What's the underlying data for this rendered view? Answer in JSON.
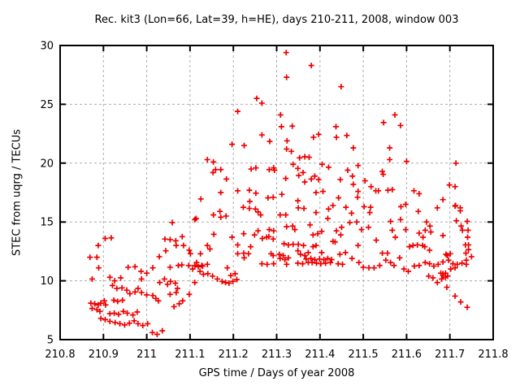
{
  "chart_data": {
    "type": "scatter",
    "title": "Rec. kit3 (Lon=66, Lat=39, h=HE), days 210-211, 2008, window 003",
    "xlabel": "GPS time / Days of year 2008",
    "ylabel": "STEC from uqrg / TECUs",
    "xlim": [
      210.8,
      211.8
    ],
    "ylim": [
      5,
      30
    ],
    "xticks": {
      "values": [
        210.8,
        210.9,
        211.0,
        211.1,
        211.2,
        211.3,
        211.4,
        211.5,
        211.6,
        211.7,
        211.8
      ],
      "labels": [
        "210.8",
        "210.9",
        "211",
        "211.1",
        "211.2",
        "211.3",
        "211.4",
        "211.5",
        "211.6",
        "211.7",
        "211.8"
      ]
    },
    "yticks": {
      "values": [
        5,
        10,
        15,
        20,
        25,
        30
      ],
      "labels": [
        "5",
        "10",
        "15",
        "20",
        "25",
        "30"
      ]
    },
    "grid": true,
    "legend": false,
    "marker": "plus",
    "marker_color": "#f00000",
    "grid_color": "#ababab",
    "axis_color": "#000000",
    "background": "#ffffff",
    "points": [
      [
        210.869,
        12.0
      ],
      [
        210.885,
        12.0
      ],
      [
        210.888,
        13.0
      ],
      [
        210.904,
        13.6
      ],
      [
        210.918,
        13.65
      ],
      [
        210.889,
        11.1
      ],
      [
        210.957,
        11.15
      ],
      [
        210.973,
        11.2
      ],
      [
        210.874,
        10.15
      ],
      [
        210.915,
        10.3
      ],
      [
        210.926,
        10.0
      ],
      [
        210.94,
        10.25
      ],
      [
        210.987,
        10.8
      ],
      [
        211.0,
        10.65
      ],
      [
        210.988,
        10.15
      ],
      [
        210.921,
        9.6
      ],
      [
        210.931,
        9.35
      ],
      [
        210.943,
        9.4
      ],
      [
        210.954,
        9.2
      ],
      [
        210.961,
        8.9
      ],
      [
        210.973,
        9.05
      ],
      [
        210.98,
        9.35
      ],
      [
        210.988,
        9.0
      ],
      [
        211.0,
        8.8
      ],
      [
        210.871,
        8.1
      ],
      [
        210.88,
        8.05
      ],
      [
        210.888,
        7.95
      ],
      [
        210.894,
        8.1
      ],
      [
        210.874,
        7.65
      ],
      [
        210.885,
        7.55
      ],
      [
        210.892,
        7.4
      ],
      [
        210.902,
        8.3
      ],
      [
        210.905,
        7.95
      ],
      [
        210.924,
        8.35
      ],
      [
        210.933,
        8.25
      ],
      [
        210.944,
        8.35
      ],
      [
        210.915,
        7.2
      ],
      [
        210.925,
        7.25
      ],
      [
        210.935,
        7.15
      ],
      [
        210.946,
        7.4
      ],
      [
        210.955,
        7.25
      ],
      [
        210.968,
        7.1
      ],
      [
        210.978,
        7.35
      ],
      [
        210.894,
        6.8
      ],
      [
        210.904,
        6.7
      ],
      [
        210.915,
        6.55
      ],
      [
        210.927,
        6.45
      ],
      [
        210.938,
        6.35
      ],
      [
        210.949,
        6.25
      ],
      [
        210.96,
        6.4
      ],
      [
        210.971,
        6.6
      ],
      [
        210.98,
        6.35
      ],
      [
        210.991,
        6.2
      ],
      [
        211.002,
        6.35
      ],
      [
        211.013,
        5.6
      ],
      [
        211.024,
        5.45
      ],
      [
        211.036,
        5.75
      ],
      [
        211.014,
        8.75
      ],
      [
        211.021,
        8.5
      ],
      [
        211.027,
        8.3
      ],
      [
        211.03,
        9.85
      ],
      [
        211.041,
        10.15
      ],
      [
        211.048,
        9.7
      ],
      [
        211.055,
        9.95
      ],
      [
        211.066,
        9.8
      ],
      [
        211.071,
        9.35
      ],
      [
        211.054,
        8.85
      ],
      [
        211.068,
        9.0
      ],
      [
        211.063,
        7.8
      ],
      [
        211.075,
        8.05
      ],
      [
        211.083,
        8.3
      ],
      [
        211.014,
        11.1
      ],
      [
        211.029,
        12.05
      ],
      [
        211.042,
        13.55
      ],
      [
        211.054,
        13.5
      ],
      [
        211.067,
        13.4
      ],
      [
        211.082,
        13.75
      ],
      [
        211.068,
        13.0
      ],
      [
        211.085,
        13.0
      ],
      [
        211.044,
        12.55
      ],
      [
        211.054,
        11.15
      ],
      [
        211.059,
        14.95
      ],
      [
        211.073,
        11.3
      ],
      [
        211.081,
        11.35
      ],
      [
        211.097,
        11.3
      ],
      [
        211.098,
        12.6
      ],
      [
        211.101,
        12.3
      ],
      [
        211.111,
        11.3
      ],
      [
        211.114,
        15.3
      ],
      [
        211.119,
        11.2
      ],
      [
        211.125,
        16.95
      ],
      [
        211.127,
        11.3
      ],
      [
        211.098,
        8.85
      ],
      [
        211.106,
        11.0
      ],
      [
        211.111,
        9.85
      ],
      [
        211.123,
        10.8
      ],
      [
        211.131,
        10.55
      ],
      [
        211.141,
        10.6
      ],
      [
        211.152,
        10.4
      ],
      [
        211.163,
        10.15
      ],
      [
        211.174,
        9.95
      ],
      [
        211.182,
        9.85
      ],
      [
        211.19,
        9.8
      ],
      [
        211.199,
        9.95
      ],
      [
        211.208,
        10.1
      ],
      [
        211.194,
        10.45
      ],
      [
        211.204,
        10.6
      ],
      [
        211.115,
        11.55
      ],
      [
        211.129,
        11.25
      ],
      [
        211.14,
        11.4
      ],
      [
        211.186,
        11.1
      ],
      [
        211.124,
        12.3
      ],
      [
        211.14,
        13.0
      ],
      [
        211.146,
        12.7
      ],
      [
        211.155,
        13.95
      ],
      [
        211.111,
        15.2
      ],
      [
        211.154,
        15.6
      ],
      [
        211.169,
        15.9
      ],
      [
        211.171,
        15.4
      ],
      [
        211.183,
        15.5
      ],
      [
        211.14,
        20.3
      ],
      [
        211.154,
        20.1
      ],
      [
        211.159,
        19.45
      ],
      [
        211.171,
        19.45
      ],
      [
        211.153,
        19.2
      ],
      [
        211.171,
        17.5
      ],
      [
        211.184,
        18.65
      ],
      [
        211.197,
        21.6
      ],
      [
        211.225,
        21.5
      ],
      [
        211.21,
        24.4
      ],
      [
        211.197,
        13.7
      ],
      [
        211.21,
        13.05
      ],
      [
        211.21,
        12.3
      ],
      [
        211.224,
        12.35
      ],
      [
        211.235,
        12.3
      ],
      [
        211.225,
        11.95
      ],
      [
        211.224,
        14.0
      ],
      [
        211.21,
        17.65
      ],
      [
        211.237,
        17.7
      ],
      [
        211.252,
        17.45
      ],
      [
        211.238,
        16.75
      ],
      [
        211.223,
        16.25
      ],
      [
        211.237,
        16.15
      ],
      [
        211.251,
        16.1
      ],
      [
        211.241,
        19.5
      ],
      [
        211.252,
        19.6
      ],
      [
        211.254,
        25.5
      ],
      [
        211.266,
        25.1
      ],
      [
        211.266,
        22.4
      ],
      [
        211.284,
        21.85
      ],
      [
        211.283,
        19.45
      ],
      [
        211.293,
        19.6
      ],
      [
        211.295,
        19.4
      ],
      [
        211.24,
        12.9
      ],
      [
        211.249,
        13.9
      ],
      [
        211.257,
        14.25
      ],
      [
        211.257,
        15.85
      ],
      [
        211.263,
        15.6
      ],
      [
        211.266,
        11.45
      ],
      [
        211.278,
        11.4
      ],
      [
        211.28,
        17.05
      ],
      [
        211.292,
        17.1
      ],
      [
        211.277,
        13.7
      ],
      [
        211.282,
        13.75
      ],
      [
        211.267,
        13.6
      ],
      [
        211.287,
        12.3
      ],
      [
        211.292,
        12.15
      ],
      [
        211.293,
        11.45
      ],
      [
        211.283,
        14.35
      ],
      [
        211.293,
        14.25
      ],
      [
        211.292,
        13.55
      ],
      [
        211.322,
        29.4
      ],
      [
        211.38,
        28.3
      ],
      [
        211.323,
        27.3
      ],
      [
        211.449,
        26.5
      ],
      [
        211.309,
        24.1
      ],
      [
        211.311,
        23.1
      ],
      [
        211.336,
        23.15
      ],
      [
        211.437,
        23.1
      ],
      [
        211.385,
        22.2
      ],
      [
        211.397,
        22.45
      ],
      [
        211.438,
        22.2
      ],
      [
        211.462,
        22.35
      ],
      [
        211.324,
        21.9
      ],
      [
        211.323,
        21.2
      ],
      [
        211.334,
        21.0
      ],
      [
        211.353,
        20.45
      ],
      [
        211.365,
        20.55
      ],
      [
        211.375,
        20.5
      ],
      [
        211.338,
        19.9
      ],
      [
        211.349,
        19.55
      ],
      [
        211.361,
        19.2
      ],
      [
        211.405,
        19.9
      ],
      [
        211.42,
        19.65
      ],
      [
        211.464,
        19.4
      ],
      [
        211.321,
        18.7
      ],
      [
        211.351,
        18.95
      ],
      [
        211.365,
        18.4
      ],
      [
        211.38,
        18.65
      ],
      [
        211.388,
        18.9
      ],
      [
        211.397,
        18.6
      ],
      [
        211.447,
        18.6
      ],
      [
        211.391,
        17.5
      ],
      [
        211.407,
        17.6
      ],
      [
        211.312,
        17.35
      ],
      [
        211.349,
        16.8
      ],
      [
        211.308,
        15.6
      ],
      [
        211.321,
        15.6
      ],
      [
        211.35,
        16.2
      ],
      [
        211.363,
        16.15
      ],
      [
        211.391,
        15.8
      ],
      [
        211.42,
        16.1
      ],
      [
        211.418,
        15.3
      ],
      [
        211.323,
        14.6
      ],
      [
        211.337,
        14.65
      ],
      [
        211.342,
        14.35
      ],
      [
        211.377,
        14.75
      ],
      [
        211.384,
        13.9
      ],
      [
        211.395,
        14.0
      ],
      [
        211.404,
        14.2
      ],
      [
        211.317,
        13.15
      ],
      [
        211.327,
        13.05
      ],
      [
        211.338,
        13.1
      ],
      [
        211.35,
        13.1
      ],
      [
        211.362,
        13.0
      ],
      [
        211.373,
        12.4
      ],
      [
        211.384,
        12.9
      ],
      [
        211.391,
        13.0
      ],
      [
        211.306,
        12.25
      ],
      [
        211.315,
        12.15
      ],
      [
        211.308,
        11.9
      ],
      [
        211.319,
        11.8
      ],
      [
        211.327,
        11.95
      ],
      [
        211.349,
        12.55
      ],
      [
        211.355,
        12.25
      ],
      [
        211.365,
        12.15
      ],
      [
        211.368,
        11.85
      ],
      [
        211.379,
        11.9
      ],
      [
        211.388,
        11.8
      ],
      [
        211.399,
        11.85
      ],
      [
        211.409,
        11.8
      ],
      [
        211.418,
        11.9
      ],
      [
        211.427,
        11.8
      ],
      [
        211.404,
        12.4
      ],
      [
        211.323,
        11.4
      ],
      [
        211.349,
        11.5
      ],
      [
        211.36,
        11.45
      ],
      [
        211.373,
        11.55
      ],
      [
        211.382,
        11.55
      ],
      [
        211.392,
        11.5
      ],
      [
        211.402,
        11.45
      ],
      [
        211.413,
        11.5
      ],
      [
        211.424,
        11.55
      ],
      [
        211.43,
        16.4
      ],
      [
        211.443,
        17.05
      ],
      [
        211.487,
        17.1
      ],
      [
        211.46,
        16.25
      ],
      [
        211.473,
        15.75
      ],
      [
        211.502,
        16.3
      ],
      [
        211.517,
        16.25
      ],
      [
        211.515,
        15.8
      ],
      [
        211.477,
        21.3
      ],
      [
        211.488,
        19.8
      ],
      [
        211.475,
        18.9
      ],
      [
        211.504,
        18.5
      ],
      [
        211.477,
        18.2
      ],
      [
        211.518,
        18.0
      ],
      [
        211.488,
        17.6
      ],
      [
        211.544,
        19.3
      ],
      [
        211.546,
        19.05
      ],
      [
        211.529,
        17.65
      ],
      [
        211.535,
        17.65
      ],
      [
        211.557,
        17.7
      ],
      [
        211.567,
        17.75
      ],
      [
        211.617,
        17.65
      ],
      [
        211.629,
        17.4
      ],
      [
        211.547,
        23.45
      ],
      [
        211.573,
        24.1
      ],
      [
        211.586,
        23.2
      ],
      [
        211.561,
        21.3
      ],
      [
        211.561,
        20.3
      ],
      [
        211.6,
        20.15
      ],
      [
        211.714,
        20.0
      ],
      [
        211.587,
        16.3
      ],
      [
        211.598,
        16.5
      ],
      [
        211.627,
        15.9
      ],
      [
        211.671,
        16.2
      ],
      [
        211.684,
        16.9
      ],
      [
        211.713,
        16.4
      ],
      [
        211.724,
        16.2
      ],
      [
        211.712,
        16.35
      ],
      [
        211.724,
        15.95
      ],
      [
        211.586,
        15.2
      ],
      [
        211.598,
        14.35
      ],
      [
        211.469,
        14.95
      ],
      [
        211.485,
        15.0
      ],
      [
        211.45,
        14.55
      ],
      [
        211.438,
        14.25
      ],
      [
        211.496,
        14.35
      ],
      [
        211.512,
        14.55
      ],
      [
        211.646,
        15.0
      ],
      [
        211.654,
        14.65
      ],
      [
        211.643,
        14.3
      ],
      [
        211.656,
        14.15
      ],
      [
        211.715,
        15.1
      ],
      [
        211.726,
        14.65
      ],
      [
        211.729,
        14.3
      ],
      [
        211.74,
        15.05
      ],
      [
        211.742,
        14.3
      ],
      [
        211.684,
        13.85
      ],
      [
        211.741,
        13.7
      ],
      [
        211.43,
        13.35
      ],
      [
        211.53,
        13.45
      ],
      [
        211.488,
        13.0
      ],
      [
        211.435,
        13.3
      ],
      [
        211.448,
        13.9
      ],
      [
        211.459,
        12.4
      ],
      [
        211.446,
        12.25
      ],
      [
        211.474,
        11.9
      ],
      [
        211.544,
        12.35
      ],
      [
        211.556,
        12.35
      ],
      [
        211.552,
        11.75
      ],
      [
        211.563,
        11.55
      ],
      [
        211.571,
        11.3
      ],
      [
        211.584,
        11.95
      ],
      [
        211.607,
        12.9
      ],
      [
        211.615,
        13.0
      ],
      [
        211.625,
        13.05
      ],
      [
        211.637,
        13.0
      ],
      [
        211.642,
        12.9
      ],
      [
        211.653,
        12.6
      ],
      [
        211.694,
        12.15
      ],
      [
        211.736,
        13.05
      ],
      [
        211.737,
        12.35
      ],
      [
        211.738,
        11.75
      ],
      [
        211.75,
        12.05
      ],
      [
        211.743,
        13.05
      ],
      [
        211.743,
        12.65
      ],
      [
        211.701,
        12.3
      ],
      [
        211.691,
        12.25
      ],
      [
        211.442,
        11.45
      ],
      [
        211.452,
        11.4
      ],
      [
        211.49,
        11.55
      ],
      [
        211.5,
        11.15
      ],
      [
        211.513,
        11.1
      ],
      [
        211.525,
        11.1
      ],
      [
        211.538,
        11.3
      ],
      [
        211.594,
        11.0
      ],
      [
        211.604,
        10.8
      ],
      [
        211.618,
        11.25
      ],
      [
        211.629,
        11.3
      ],
      [
        211.643,
        11.55
      ],
      [
        211.653,
        11.45
      ],
      [
        211.663,
        11.25
      ],
      [
        211.673,
        11.4
      ],
      [
        211.707,
        11.45
      ],
      [
        211.717,
        11.4
      ],
      [
        211.728,
        11.5
      ],
      [
        211.738,
        11.4
      ],
      [
        211.684,
        11.6
      ],
      [
        211.697,
        11.75
      ],
      [
        211.712,
        11.1
      ],
      [
        211.702,
        11.0
      ],
      [
        211.651,
        10.4
      ],
      [
        211.661,
        10.25
      ],
      [
        211.671,
        9.85
      ],
      [
        211.681,
        10.15
      ],
      [
        211.684,
        10.45
      ],
      [
        211.69,
        10.3
      ],
      [
        211.679,
        10.65
      ],
      [
        211.69,
        10.65
      ],
      [
        211.684,
        10.6
      ],
      [
        211.695,
        10.4
      ],
      [
        211.693,
        9.45
      ],
      [
        211.712,
        8.7
      ],
      [
        211.725,
        8.2
      ],
      [
        211.74,
        7.75
      ],
      [
        211.563,
        15.05
      ],
      [
        211.567,
        14.3
      ],
      [
        211.574,
        13.7
      ],
      [
        211.629,
        14.05
      ],
      [
        211.638,
        13.7
      ],
      [
        211.699,
        18.15
      ],
      [
        211.712,
        18.0
      ]
    ]
  }
}
